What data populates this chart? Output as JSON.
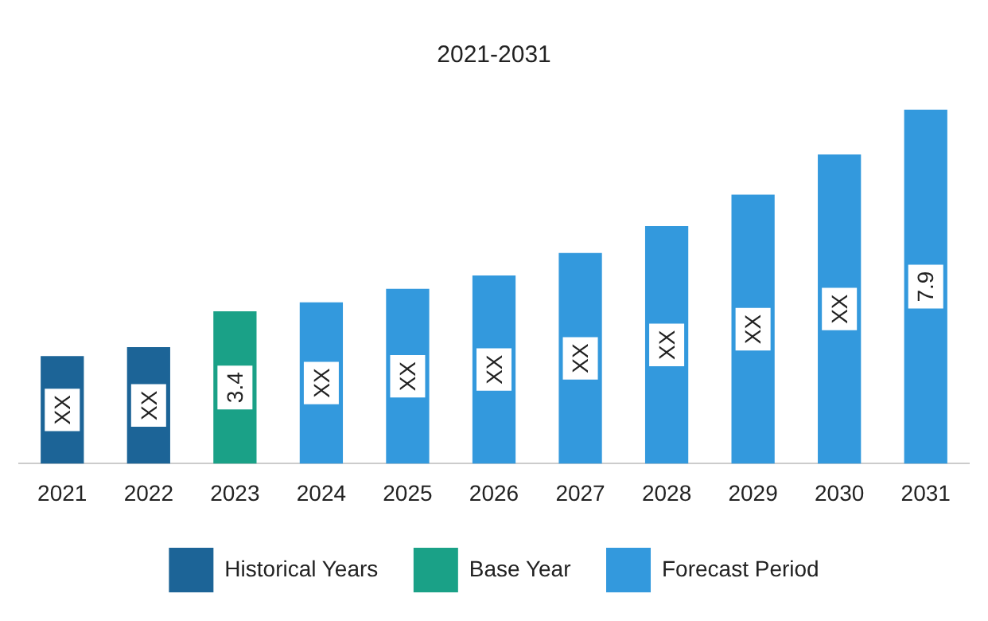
{
  "chart_data": {
    "type": "bar",
    "title": "2021-2031",
    "tick_labels": "x",
    "legend": "bottom",
    "grid": false,
    "categories": [
      "2021",
      "2022",
      "2023",
      "2024",
      "2025",
      "2026",
      "2027",
      "2028",
      "2029",
      "2030",
      "2031"
    ],
    "series": [
      {
        "name": "Historical Years",
        "color": "#1c6497",
        "values": [
          2.4,
          2.6,
          null,
          null,
          null,
          null,
          null,
          null,
          null,
          null,
          null
        ],
        "value_labels": [
          "XX",
          "XX",
          null,
          null,
          null,
          null,
          null,
          null,
          null,
          null,
          null
        ]
      },
      {
        "name": "Base Year",
        "color": "#1aa187",
        "values": [
          null,
          null,
          3.4,
          null,
          null,
          null,
          null,
          null,
          null,
          null,
          null
        ],
        "value_labels": [
          null,
          null,
          "3.4",
          null,
          null,
          null,
          null,
          null,
          null,
          null,
          null
        ]
      },
      {
        "name": "Forecast Period",
        "color": "#3399dd",
        "values": [
          null,
          null,
          null,
          3.6,
          3.9,
          4.2,
          4.7,
          5.3,
          6.0,
          6.9,
          7.9
        ],
        "value_labels": [
          null,
          null,
          null,
          "XX",
          "XX",
          "XX",
          "XX",
          "XX",
          "XX",
          "XX",
          "7.9"
        ]
      }
    ]
  }
}
